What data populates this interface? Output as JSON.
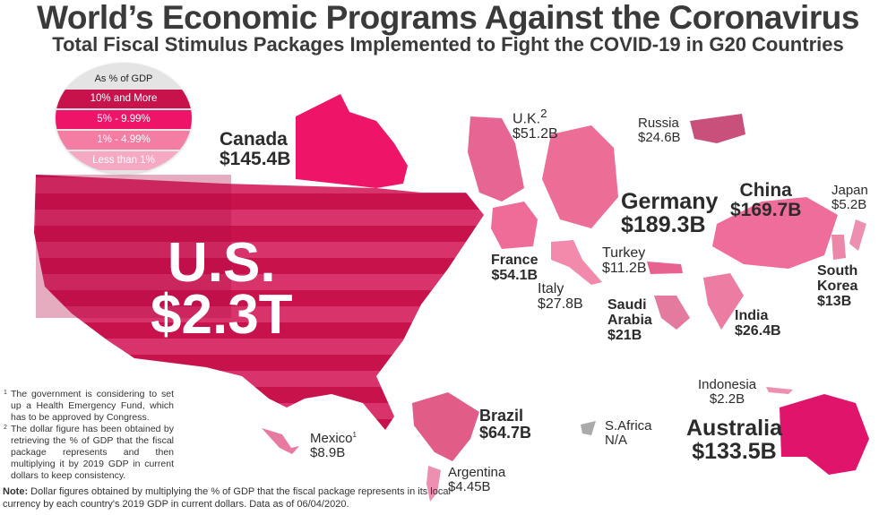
{
  "title": "World’s Economic Programs Against the Coronavirus",
  "subtitle": "Total Fiscal Stimulus Packages Implemented to Fight the COVID-19 in G20 Countries",
  "legend": {
    "header": "As % of GDP",
    "items": [
      {
        "label": "10% and More",
        "color": "#c8124c"
      },
      {
        "label": "5% - 9.99%",
        "color": "#ee1468"
      },
      {
        "label": "1% - 4.99%",
        "color": "#f47ea3"
      },
      {
        "label": "Less than 1%",
        "color": "#f6a9c2"
      }
    ]
  },
  "countries": {
    "us": {
      "name": "U.S.",
      "value": "$2.3T"
    },
    "canada": {
      "name": "Canada",
      "value": "$145.4B"
    },
    "uk": {
      "name": "U.K.",
      "sup": "2",
      "value": "$51.2B"
    },
    "russia": {
      "name": "Russia",
      "value": "$24.6B"
    },
    "germany": {
      "name": "Germany",
      "value": "$189.3B"
    },
    "china": {
      "name": "China",
      "value": "$169.7B"
    },
    "japan": {
      "name": "Japan",
      "value": "$5.2B"
    },
    "france": {
      "name": "France",
      "value": "$54.1B"
    },
    "turkey": {
      "name": "Turkey",
      "value": "$11.2B"
    },
    "italy": {
      "name": "Italy",
      "value": "$27.8B"
    },
    "saudi": {
      "name": "Saudi Arabia",
      "value": "$21B"
    },
    "india": {
      "name": "India",
      "value": "$26.4B"
    },
    "korea": {
      "name": "South Korea",
      "value": "$13B"
    },
    "indonesia": {
      "name": "Indonesia",
      "value": "$2.2B"
    },
    "australia": {
      "name": "Australia",
      "value": "$133.5B"
    },
    "brazil": {
      "name": "Brazil",
      "value": "$64.7B"
    },
    "safrica": {
      "name": "S.Africa",
      "value": "N/A"
    },
    "mexico": {
      "name": "Mexico",
      "sup": "1",
      "value": "$8.9B"
    },
    "argentina": {
      "name": "Argentina",
      "value": "$4.45B"
    }
  },
  "footnotes": [
    {
      "mark": "1",
      "text": "The government is considering to set up a Health Emergency Fund, which has to be approved by Congress."
    },
    {
      "mark": "2",
      "text": "The dollar figure has been obtained by retrieving the % of GDP that the fiscal package represents and then multiplying it by 2019 GDP in current dollars to keep consistency."
    }
  ],
  "note": {
    "label": "Note:",
    "text": " Dollar figures obtained by multiplying the % of GDP that the fiscal package represents in its local currency by each country's 2019 GDP in current dollars. Data as of 06/04/2020."
  }
}
